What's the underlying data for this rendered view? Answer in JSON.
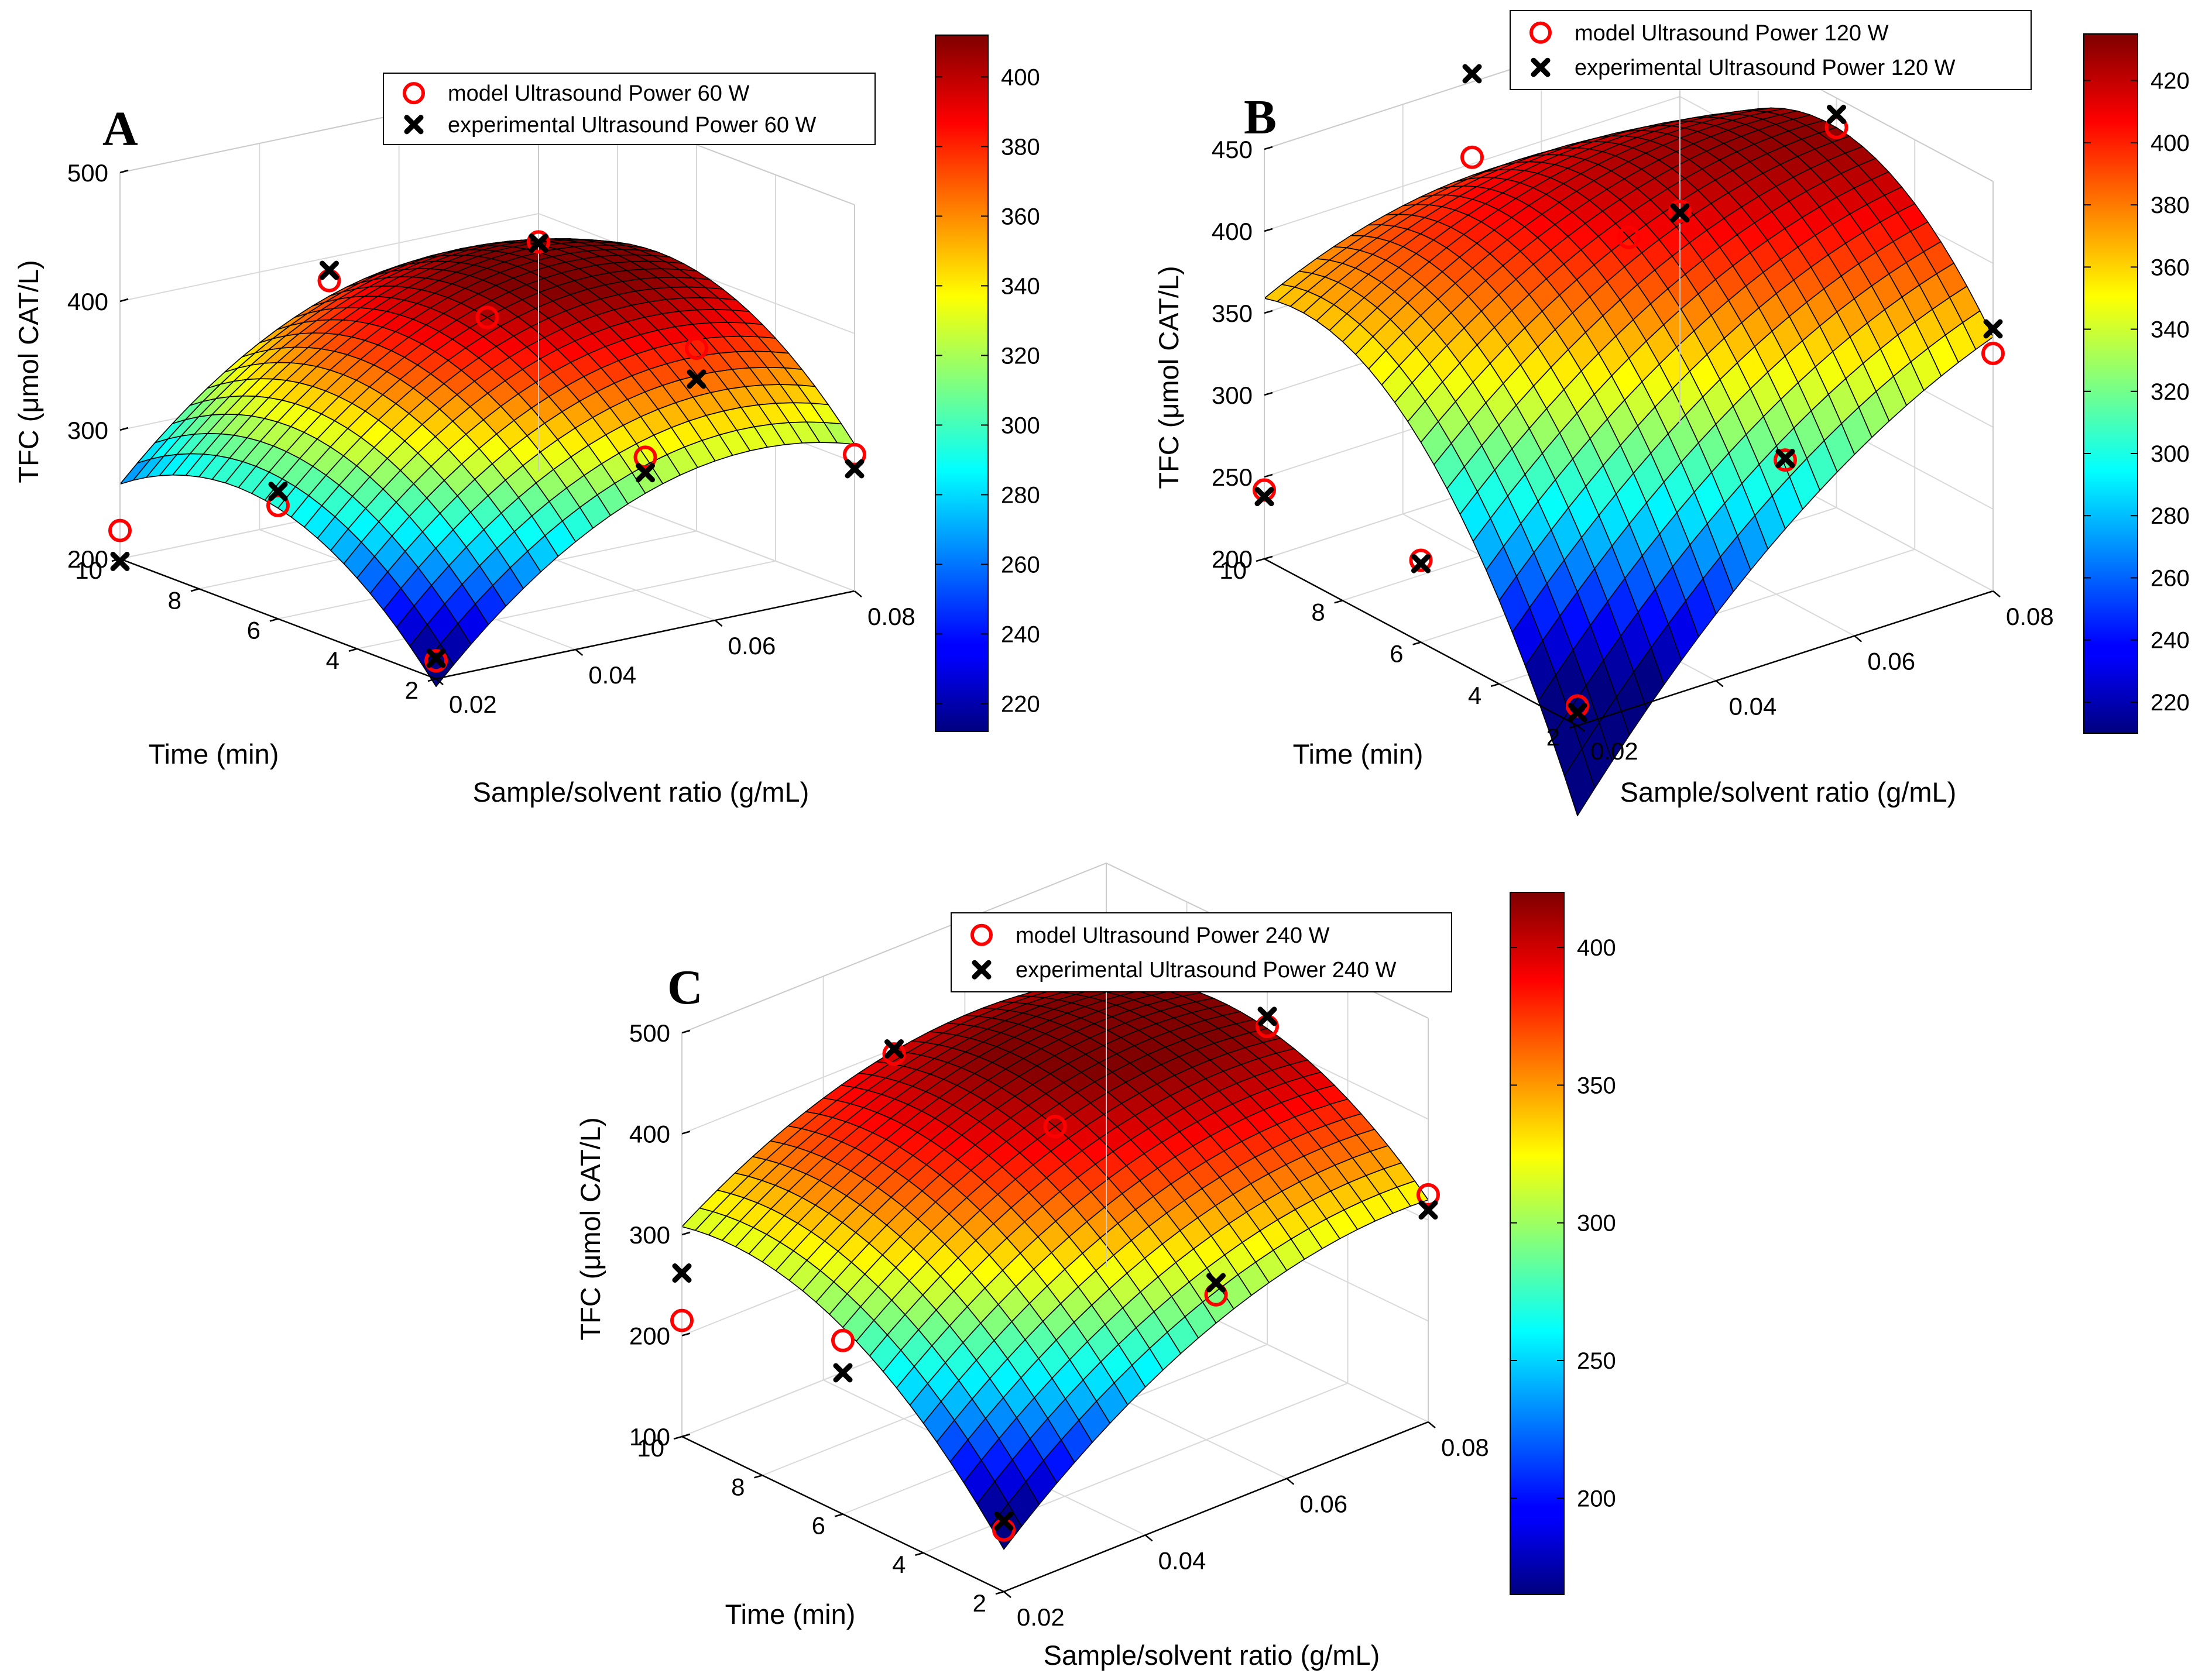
{
  "colors": {
    "model_marker": "#ff0000",
    "experimental_marker": "#000000",
    "mesh_lines": "#000000",
    "box_lines": "#000000",
    "grid_lines": "#d9d9d9",
    "colormap": "jet"
  },
  "chart_data": [
    {
      "type": "surface",
      "panel_label": "A",
      "xlabel": "Sample/solvent ratio (g/mL)",
      "ylabel": "Time (min)",
      "zlabel": "TFC (μmol CAT/L)",
      "xlim": [
        0.02,
        0.08
      ],
      "ylim": [
        2,
        10
      ],
      "zlim": [
        200,
        500
      ],
      "xticks": [
        "0.02",
        "0.04",
        "0.06",
        "0.08"
      ],
      "yticks": [
        "2",
        "4",
        "6",
        "8",
        "10"
      ],
      "zticks": [
        "200",
        "300",
        "400",
        "500"
      ],
      "colorbar": {
        "range": [
          212,
          412
        ],
        "ticks": [
          "220",
          "240",
          "260",
          "280",
          "300",
          "320",
          "340",
          "360",
          "380",
          "400"
        ]
      },
      "surface": {
        "b0": 400,
        "b1": 58,
        "b2": 30,
        "b12": -2,
        "b11": -56,
        "b22": -60
      },
      "legend": {
        "placement": "top-center",
        "entries": [
          "model Ultrasound Power 60 W",
          "experimental Ultrasound Power 60 W"
        ]
      },
      "series": [
        {
          "name": "model Ultrasound Power 60 W",
          "marker": "circle",
          "points": [
            [
              0.02,
              2,
              214
            ],
            [
              0.02,
              6,
              288
            ],
            [
              0.02,
              10,
              222
            ],
            [
              0.05,
              2,
              338
            ],
            [
              0.05,
              6,
              400
            ],
            [
              0.05,
              10,
              382
            ],
            [
              0.08,
              2,
              306
            ],
            [
              0.08,
              6,
              342
            ],
            [
              0.08,
              10,
              378
            ]
          ]
        },
        {
          "name": "experimental Ultrasound Power 60 W",
          "marker": "x",
          "points": [
            [
              0.02,
              2,
              216
            ],
            [
              0.02,
              6,
              299
            ],
            [
              0.02,
              10,
              198
            ],
            [
              0.05,
              2,
              326
            ],
            [
              0.05,
              10,
              390
            ],
            [
              0.08,
              2,
              295
            ],
            [
              0.08,
              6,
              318
            ],
            [
              0.08,
              10,
              377
            ]
          ]
        }
      ]
    },
    {
      "type": "surface",
      "panel_label": "B",
      "xlabel": "Sample/solvent ratio (g/mL)",
      "ylabel": "Time (min)",
      "zlabel": "TFC (μmol CAT/L)",
      "xlim": [
        0.02,
        0.08
      ],
      "ylim": [
        2,
        10
      ],
      "zlim": [
        200,
        450
      ],
      "xticks": [
        "0.02",
        "0.04",
        "0.06",
        "0.08"
      ],
      "yticks": [
        "2",
        "4",
        "6",
        "8",
        "10"
      ],
      "zticks": [
        "200",
        "250",
        "300",
        "350",
        "400",
        "450"
      ],
      "colorbar": {
        "range": [
          210,
          435
        ],
        "ticks": [
          "220",
          "240",
          "260",
          "280",
          "300",
          "320",
          "340",
          "360",
          "380",
          "400",
          "420"
        ]
      },
      "surface": {
        "b0": 406,
        "b1": 55,
        "b2": 57,
        "b12": -50,
        "b11": -29,
        "b22": -70
      },
      "legend": {
        "placement": "top-right",
        "entries": [
          "model Ultrasound Power 120 W",
          "experimental Ultrasound Power 120 W"
        ]
      },
      "series": [
        {
          "name": "model Ultrasound Power 120 W",
          "marker": "circle",
          "points": [
            [
              0.02,
              2,
              212
            ],
            [
              0.02,
              6,
              250
            ],
            [
              0.02,
              10,
              242
            ],
            [
              0.05,
              2,
              321
            ],
            [
              0.05,
              6,
              406
            ],
            [
              0.05,
              10,
              404
            ],
            [
              0.08,
              2,
              345
            ],
            [
              0.08,
              6,
              432
            ],
            [
              0.08,
              10,
              330
            ]
          ]
        },
        {
          "name": "experimental Ultrasound Power 120 W",
          "marker": "x",
          "points": [
            [
              0.02,
              2,
              208
            ],
            [
              0.02,
              6,
              248
            ],
            [
              0.02,
              10,
              238
            ],
            [
              0.05,
              2,
              322
            ],
            [
              0.05,
              10,
              455
            ],
            [
              0.08,
              2,
              360
            ],
            [
              0.08,
              6,
              440
            ],
            [
              0.08,
              10,
              329
            ]
          ]
        }
      ]
    },
    {
      "type": "surface",
      "panel_label": "C",
      "xlabel": "Sample/solvent ratio (g/mL)",
      "ylabel": "Time (min)",
      "zlabel": "TFC (μmol CAT/L)",
      "xlim": [
        0.02,
        0.08
      ],
      "ylim": [
        2,
        10
      ],
      "zlim": [
        100,
        500
      ],
      "xticks": [
        "0.02",
        "0.04",
        "0.06",
        "0.08"
      ],
      "yticks": [
        "2",
        "4",
        "6",
        "8",
        "10"
      ],
      "zticks": [
        "100",
        "200",
        "300",
        "400",
        "500"
      ],
      "colorbar": {
        "range": [
          165,
          420
        ],
        "ticks": [
          "200",
          "250",
          "300",
          "350",
          "400"
        ]
      },
      "surface": {
        "b0": 400,
        "b1": 64,
        "b2": 58,
        "b12": -25,
        "b11": -51,
        "b22": -60
      },
      "legend": {
        "placement": "top-center",
        "entries": [
          "model Ultrasound Power 240 W",
          "experimental Ultrasound Power 240 W"
        ]
      },
      "series": [
        {
          "name": "model Ultrasound Power 240 W",
          "marker": "circle",
          "points": [
            [
              0.02,
              2,
              161
            ],
            [
              0.02,
              6,
              272
            ],
            [
              0.02,
              10,
              215
            ],
            [
              0.05,
              2,
              310
            ],
            [
              0.05,
              6,
              400
            ],
            [
              0.05,
              10,
              395
            ],
            [
              0.08,
              2,
              325
            ],
            [
              0.08,
              6,
              415
            ],
            [
              0.08,
              10,
              386
            ]
          ]
        },
        {
          "name": "experimental Ultrasound Power 240 W",
          "marker": "x",
          "points": [
            [
              0.02,
              2,
              170
            ],
            [
              0.02,
              6,
              240
            ],
            [
              0.02,
              10,
              262
            ],
            [
              0.05,
              2,
              322
            ],
            [
              0.05,
              10,
              400
            ],
            [
              0.08,
              2,
              310
            ],
            [
              0.08,
              6,
              425
            ],
            [
              0.08,
              10,
              383
            ]
          ]
        }
      ]
    }
  ]
}
